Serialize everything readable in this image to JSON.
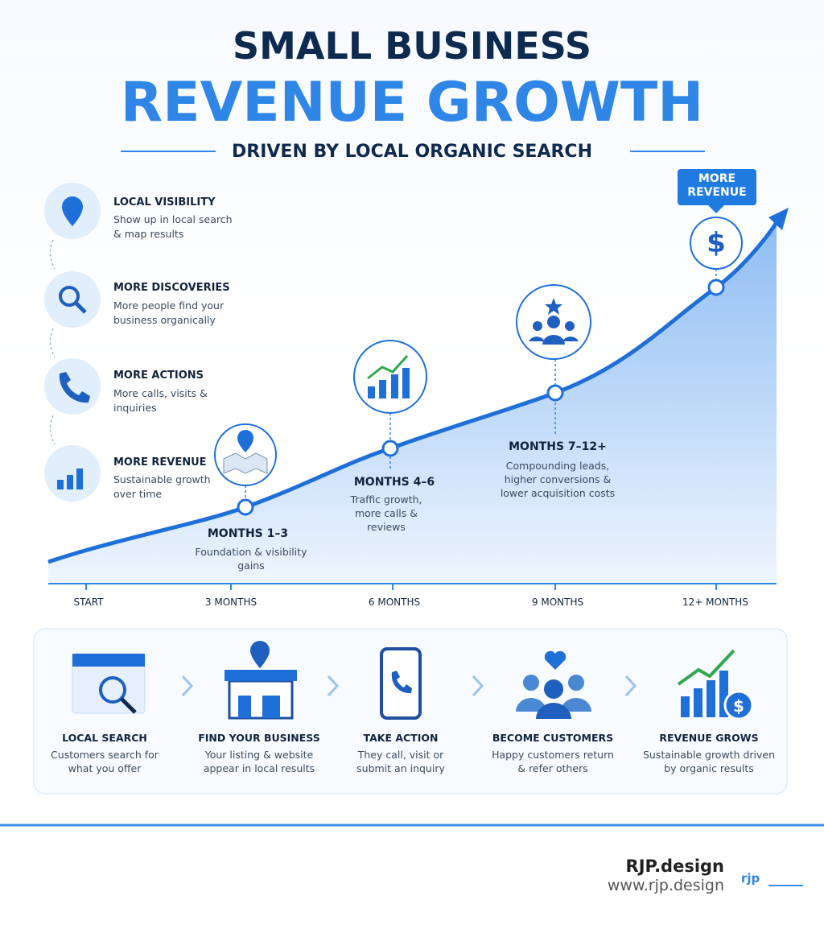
{
  "header": {
    "title_line1": "SMALL BUSINESS",
    "title_line2": "REVENUE GROWTH",
    "subtitle": "DRIVEN BY LOCAL ORGANIC SEARCH"
  },
  "steps": [
    {
      "title": "LOCAL VISIBILITY",
      "text": "Show up in local search & map results"
    },
    {
      "title": "MORE DISCOVERIES",
      "text": "More people find your business organically"
    },
    {
      "title": "MORE ACTIONS",
      "text": "More calls, visits & inquiries"
    },
    {
      "title": "MORE REVENUE",
      "text": "Sustainable growth over time"
    }
  ],
  "milestones": [
    {
      "label": "MONTHS 1–3",
      "text": "Foundation & visibility gains"
    },
    {
      "label": "MONTHS 4–6",
      "text": "Traffic growth, more calls & reviews"
    },
    {
      "label": "MONTHS 7–12+",
      "text": "Compounding leads, higher conversions & lower acquisition costs"
    }
  ],
  "badge": "MORE REVENUE",
  "timeline": [
    "START",
    "3 MONTHS",
    "6 MONTHS",
    "9 MONTHS",
    "12+ MONTHS"
  ],
  "flow": [
    {
      "title": "LOCAL SEARCH",
      "text": "Customers search for what you offer"
    },
    {
      "title": "FIND YOUR BUSINESS",
      "text": "Your listing & website appear in local results"
    },
    {
      "title": "TAKE ACTION",
      "text": "They call, visit or submit an inquiry"
    },
    {
      "title": "BECOME CUSTOMERS",
      "text": "Happy customers return & refer others"
    },
    {
      "title": "REVENUE GROWS",
      "text": "Sustainable growth driven by organic results"
    }
  ],
  "footer": {
    "brand": "RJP.design",
    "url": "www.rjp.design",
    "logo": "rjp"
  }
}
